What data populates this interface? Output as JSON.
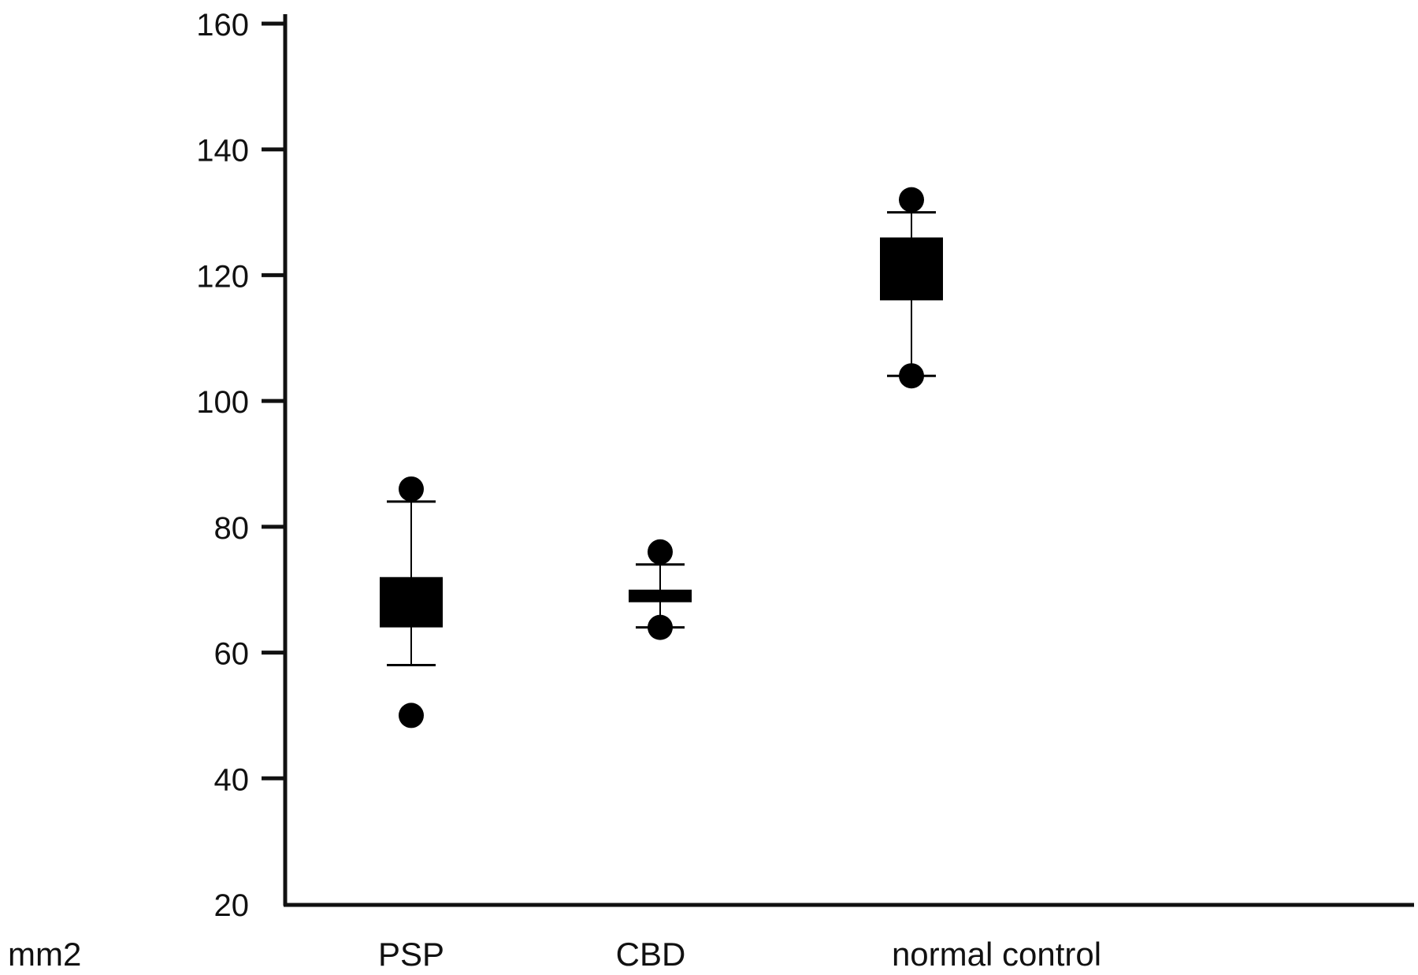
{
  "chart_data": {
    "type": "box",
    "title": "",
    "xlabel": "",
    "ylabel": "mm2",
    "ylim": [
      20,
      160
    ],
    "yticks": [
      20,
      40,
      60,
      80,
      100,
      120,
      140,
      160
    ],
    "ytick_labels": [
      "20",
      "40",
      "60",
      "80",
      "100",
      "120",
      "140",
      "160"
    ],
    "categories": [
      "PSP",
      "CBD",
      "normal control"
    ],
    "grid": false,
    "legend": "none",
    "color": "#000000",
    "boxes": [
      {
        "category": "PSP",
        "whisker_low": 58,
        "q1": 64,
        "q3": 72,
        "whisker_high": 84,
        "outliers": [
          86,
          50
        ]
      },
      {
        "category": "CBD",
        "whisker_low": 64,
        "q1": 68,
        "q3": 70,
        "whisker_high": 74,
        "outliers": [
          76,
          64
        ]
      },
      {
        "category": "normal control",
        "whisker_low": 104,
        "q1": 116,
        "q3": 126,
        "whisker_high": 130,
        "outliers": [
          132,
          104
        ]
      }
    ]
  }
}
